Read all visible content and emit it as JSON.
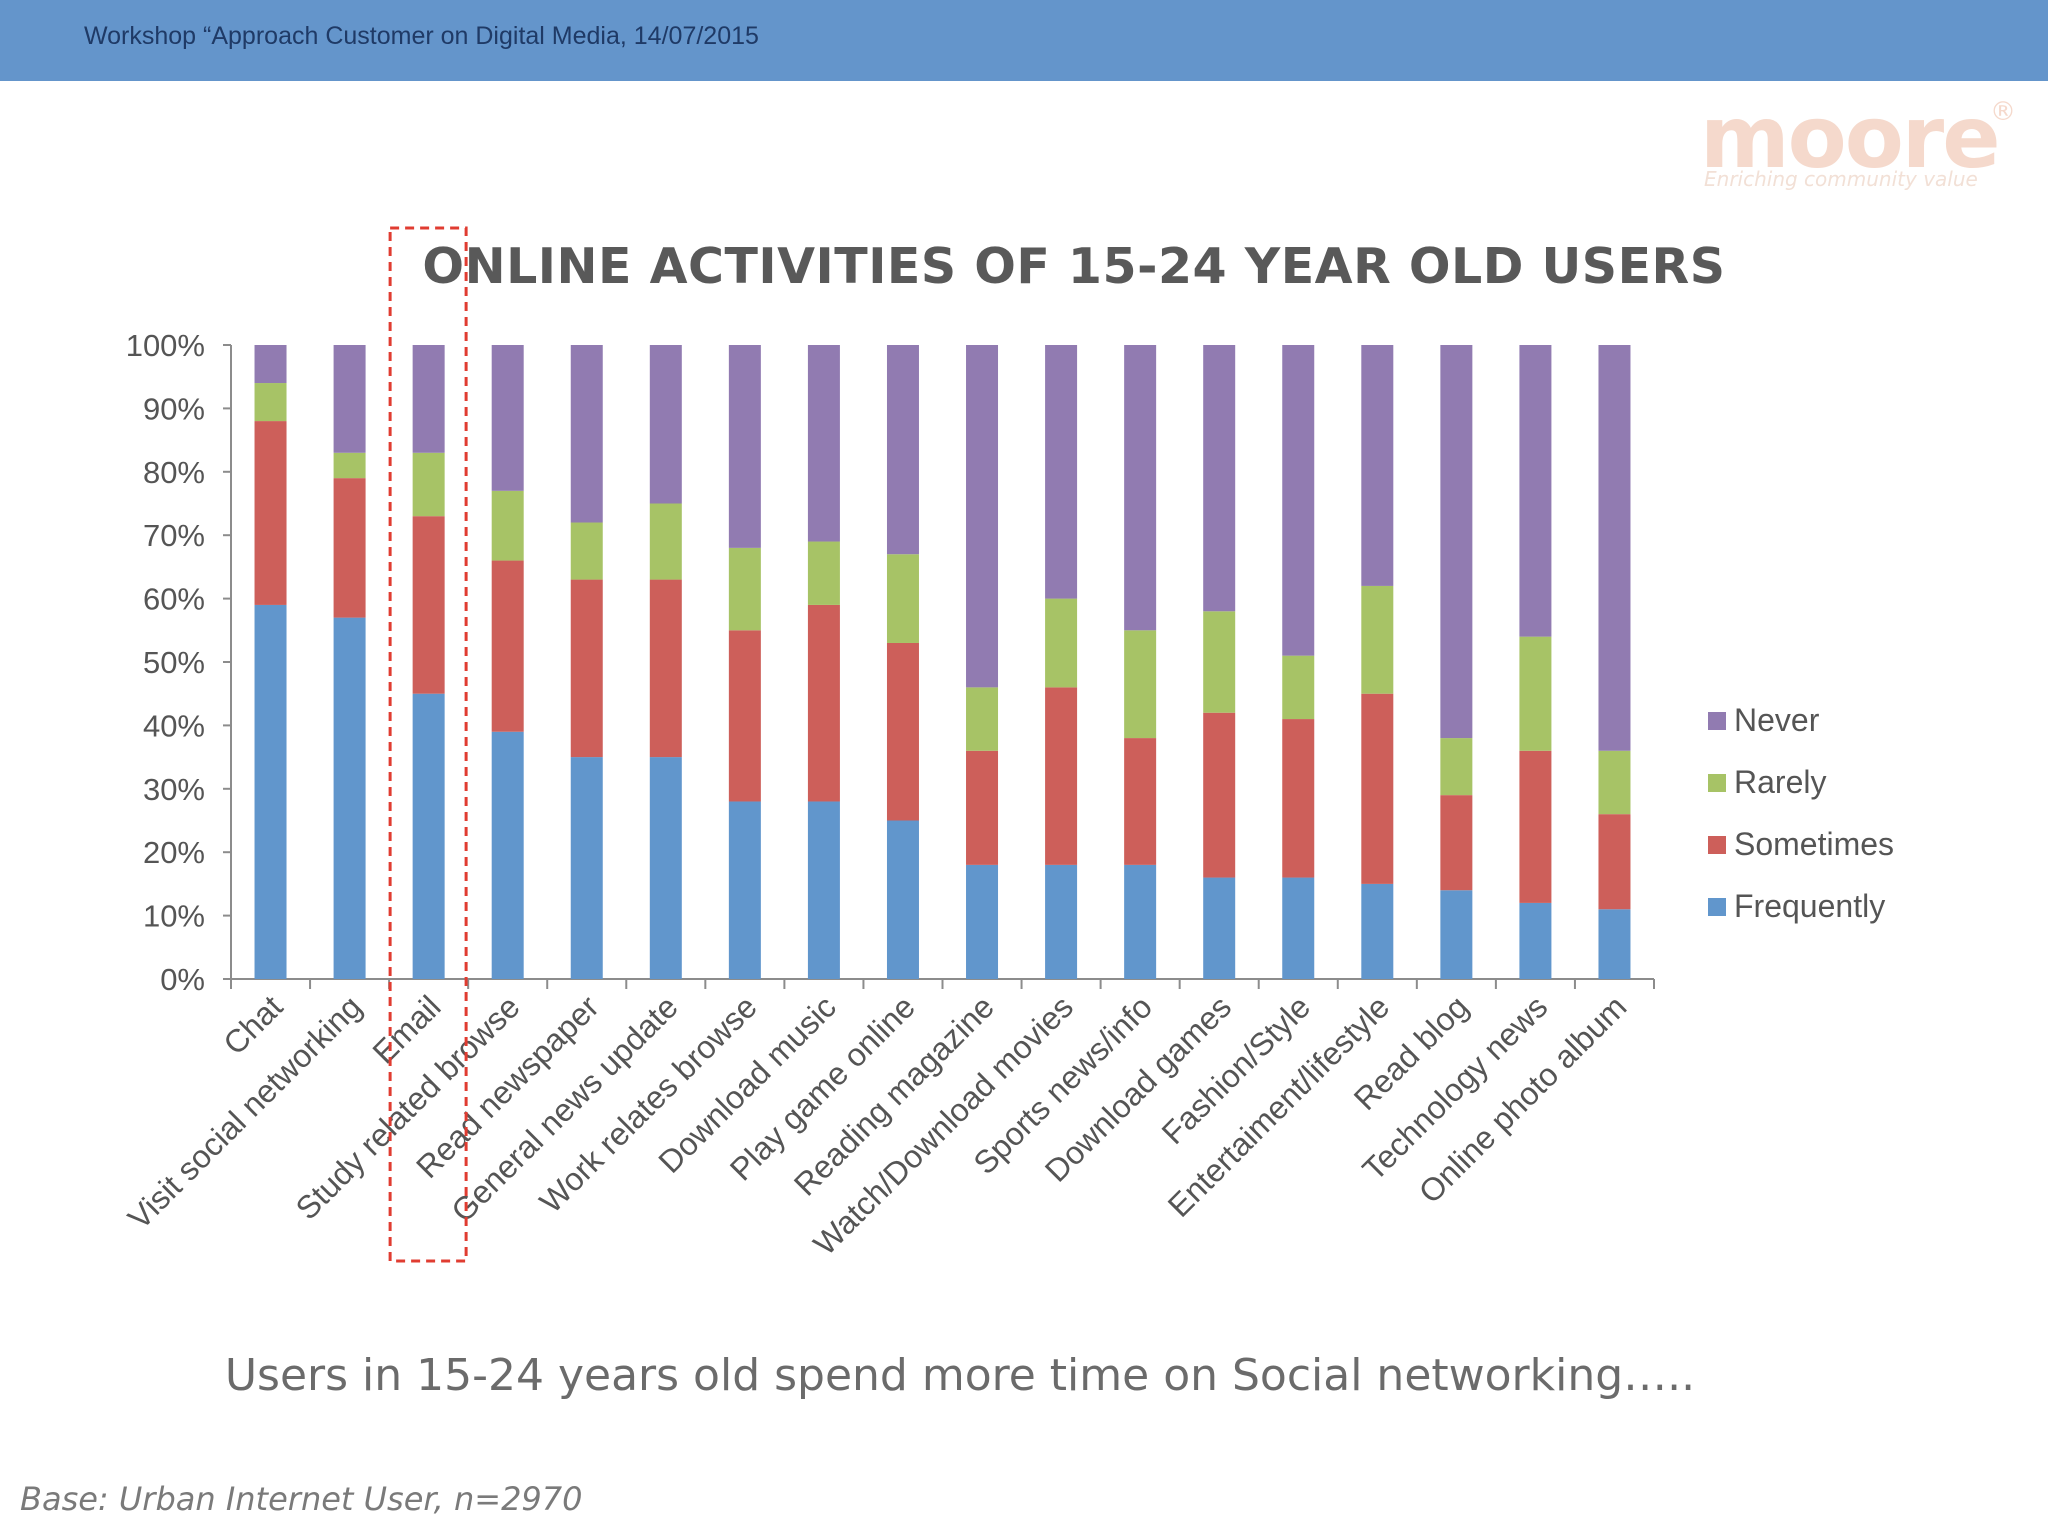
{
  "header": {
    "title": "Workshop “Approach Customer on Digital Media, 14/07/2015"
  },
  "logo": {
    "name": "moore",
    "tagline": "Enriching community value",
    "registered": "®"
  },
  "subtitle": "Users in 15-24 years old spend more time on Social networking…..",
  "base_note": "Base: Urban Internet User, n=2970",
  "colors": {
    "header": "#6495cb",
    "frequently": "#6196cc",
    "sometimes": "#cd5f5a",
    "rarely": "#a7c366",
    "never": "#917bb1",
    "highlight": "#e03c31"
  },
  "chart_data": {
    "type": "bar",
    "stacked": true,
    "title": "ONLINE ACTIVITIES OF 15-24 YEAR OLD USERS",
    "xlabel": "",
    "ylabel": "",
    "ylim": [
      0,
      100
    ],
    "y_ticks": [
      "0%",
      "10%",
      "20%",
      "30%",
      "40%",
      "50%",
      "60%",
      "70%",
      "80%",
      "90%",
      "100%"
    ],
    "legend_position": "right",
    "highlighted_category": "Email",
    "categories": [
      "Chat",
      "Visit social networking",
      "Email",
      "Study related browse",
      "Read newspaper",
      "General news update",
      "Work relates browse",
      "Download music",
      "Play game online",
      "Reading magazine",
      "Watch/Download movies",
      "Sports news/info",
      "Download games",
      "Fashion/Style",
      "Entertaiment/lifestyle",
      "Read blog",
      "Technology news",
      "Online photo album"
    ],
    "series": [
      {
        "name": "Frequently",
        "values": [
          59,
          57,
          45,
          39,
          35,
          35,
          28,
          28,
          25,
          18,
          18,
          18,
          16,
          16,
          15,
          14,
          12,
          11
        ]
      },
      {
        "name": "Sometimes",
        "values": [
          29,
          22,
          28,
          27,
          28,
          28,
          27,
          31,
          28,
          18,
          28,
          20,
          26,
          25,
          30,
          15,
          24,
          15
        ]
      },
      {
        "name": "Rarely",
        "values": [
          6,
          4,
          10,
          11,
          9,
          12,
          13,
          10,
          14,
          10,
          14,
          17,
          16,
          10,
          17,
          9,
          18,
          10
        ]
      },
      {
        "name": "Never",
        "values": [
          6,
          17,
          17,
          23,
          28,
          25,
          32,
          31,
          33,
          54,
          40,
          45,
          42,
          49,
          38,
          62,
          46,
          64
        ]
      }
    ]
  }
}
